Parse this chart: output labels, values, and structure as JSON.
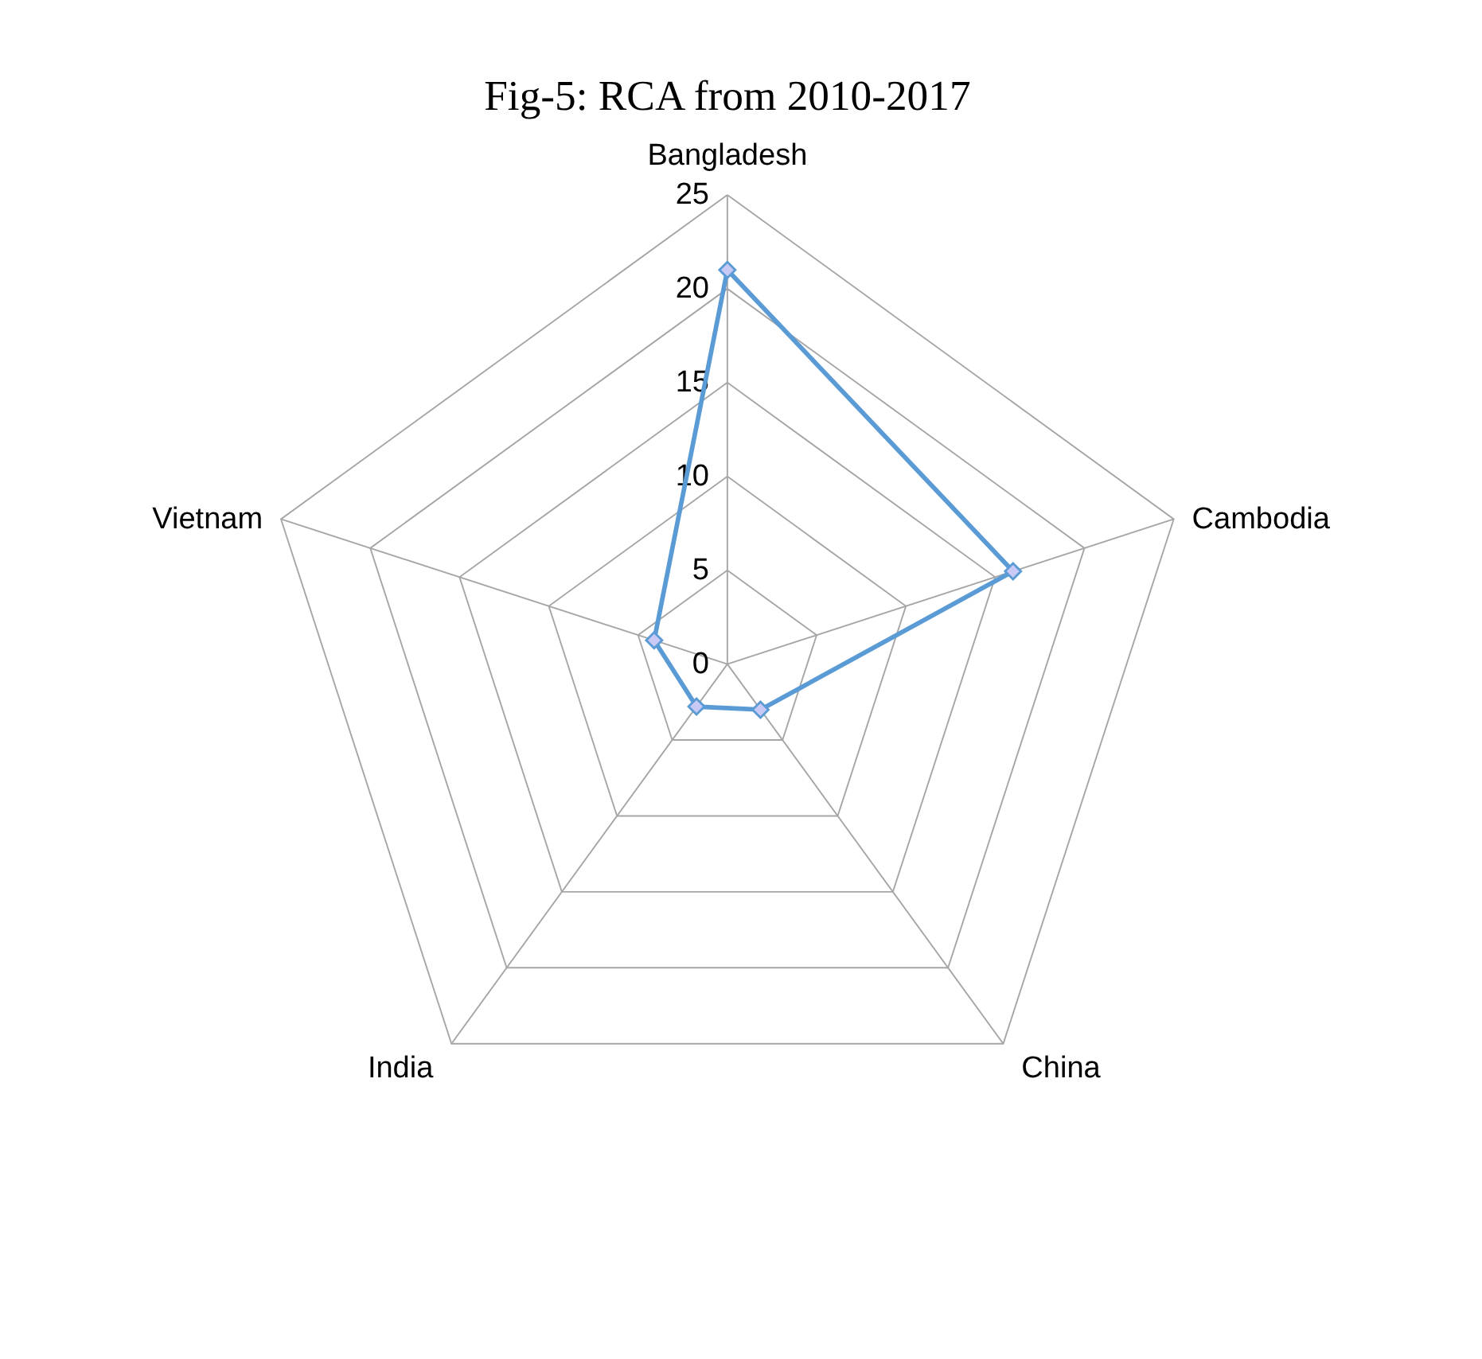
{
  "chart_data": {
    "type": "radar",
    "title": "Fig-5: RCA from 2010-2017",
    "categories": [
      "Bangladesh",
      "Cambodia",
      "China",
      "India",
      "Vietnam"
    ],
    "series": [
      {
        "color": "#5b9bd5",
        "values": [
          21,
          16,
          3,
          2.8,
          4.1
        ]
      }
    ],
    "ylim": [
      0,
      25
    ],
    "yticks": [
      0,
      5,
      10,
      15,
      20,
      25
    ],
    "grid": true,
    "marker": "diamond",
    "line_style": "solid"
  }
}
